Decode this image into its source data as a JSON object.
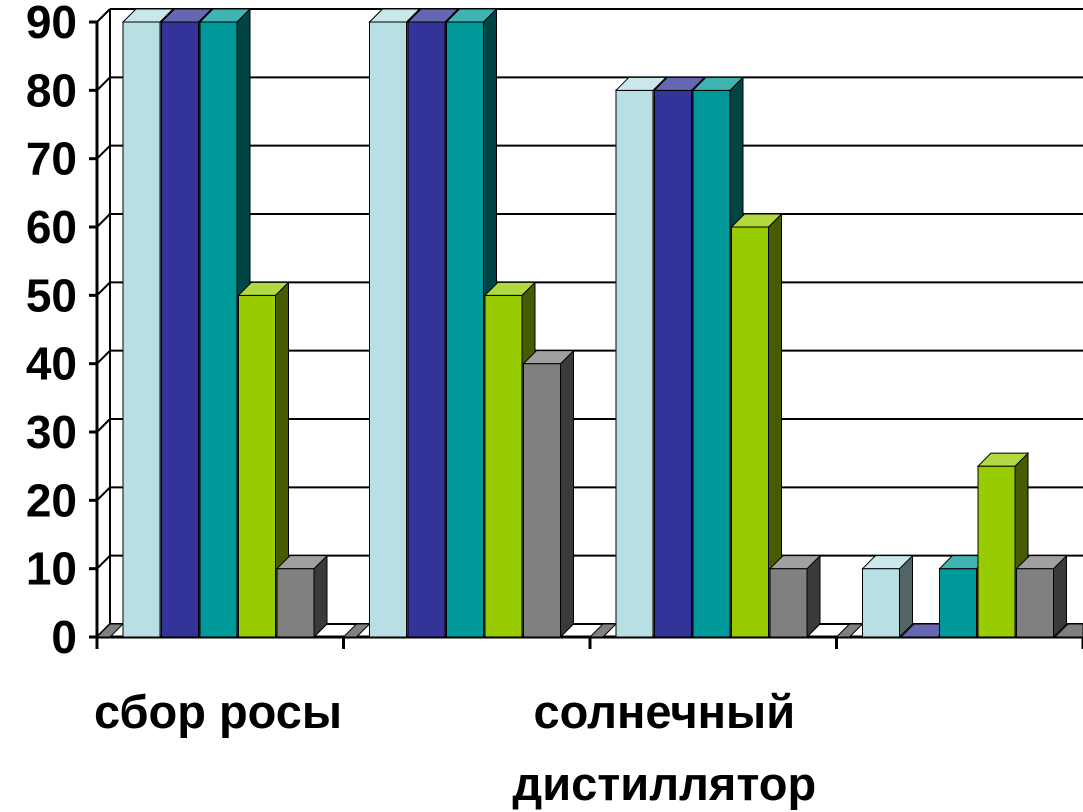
{
  "chart_data": {
    "type": "bar",
    "subtype": "clustered-3d",
    "title": "",
    "xlabel": "",
    "ylabel": "",
    "ylim": [
      0,
      90
    ],
    "yticks": [
      0,
      10,
      20,
      30,
      40,
      50,
      60,
      70,
      80,
      90
    ],
    "grid": true,
    "legend": "none",
    "categories": [
      "сбор росы",
      "",
      "солнечный дистиллятор",
      ""
    ],
    "category_label_lines": [
      [
        "сбор росы"
      ],
      [],
      [
        "солнечный",
        "дистиллятор"
      ],
      []
    ],
    "series": [
      {
        "color": "#b8e0e4",
        "values": [
          90,
          90,
          80,
          10
        ]
      },
      {
        "color": "#333399",
        "values": [
          90,
          90,
          80,
          0
        ]
      },
      {
        "color": "#009999",
        "values": [
          90,
          90,
          80,
          10
        ]
      },
      {
        "color": "#99cc00",
        "values": [
          50,
          50,
          60,
          25
        ]
      },
      {
        "color": "#808080",
        "values": [
          10,
          40,
          10,
          10
        ]
      }
    ]
  }
}
